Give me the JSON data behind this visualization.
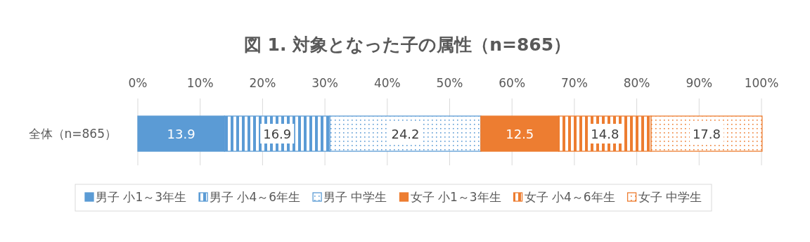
{
  "chart_data": {
    "type": "bar",
    "orientation": "horizontal",
    "stacked": true,
    "title": "図 1.  対象となった子の属性（n=865）",
    "categories": [
      "全体（n=865）"
    ],
    "series": [
      {
        "name": "男子 小1～3年生",
        "color": "#5b9bd5",
        "values": [
          13.9
        ]
      },
      {
        "name": "男子 小4～6年生",
        "color": "#5b9bd5",
        "values": [
          16.9
        ]
      },
      {
        "name": "男子 中学生",
        "color": "#5b9bd5",
        "values": [
          24.2
        ]
      },
      {
        "name": "女子 小1～3年生",
        "color": "#ed7d31",
        "values": [
          12.5
        ]
      },
      {
        "name": "女子 小4～6年生",
        "color": "#ed7d31",
        "values": [
          14.8
        ]
      },
      {
        "name": "女子 中学生",
        "color": "#ed7d31",
        "values": [
          17.8
        ]
      }
    ],
    "xlim": [
      0,
      100
    ],
    "xticks": [
      {
        "value": 0,
        "label": "0%"
      },
      {
        "value": 10,
        "label": "10%"
      },
      {
        "value": 20,
        "label": "20%"
      },
      {
        "value": 30,
        "label": "30%"
      },
      {
        "value": 40,
        "label": "40%"
      },
      {
        "value": 50,
        "label": "50%"
      },
      {
        "value": 60,
        "label": "60%"
      },
      {
        "value": 70,
        "label": "70%"
      },
      {
        "value": 80,
        "label": "80%"
      },
      {
        "value": 90,
        "label": "90%"
      },
      {
        "value": 100,
        "label": "100%"
      }
    ],
    "grid": "x",
    "legend": "bottom",
    "data_labels": true
  }
}
